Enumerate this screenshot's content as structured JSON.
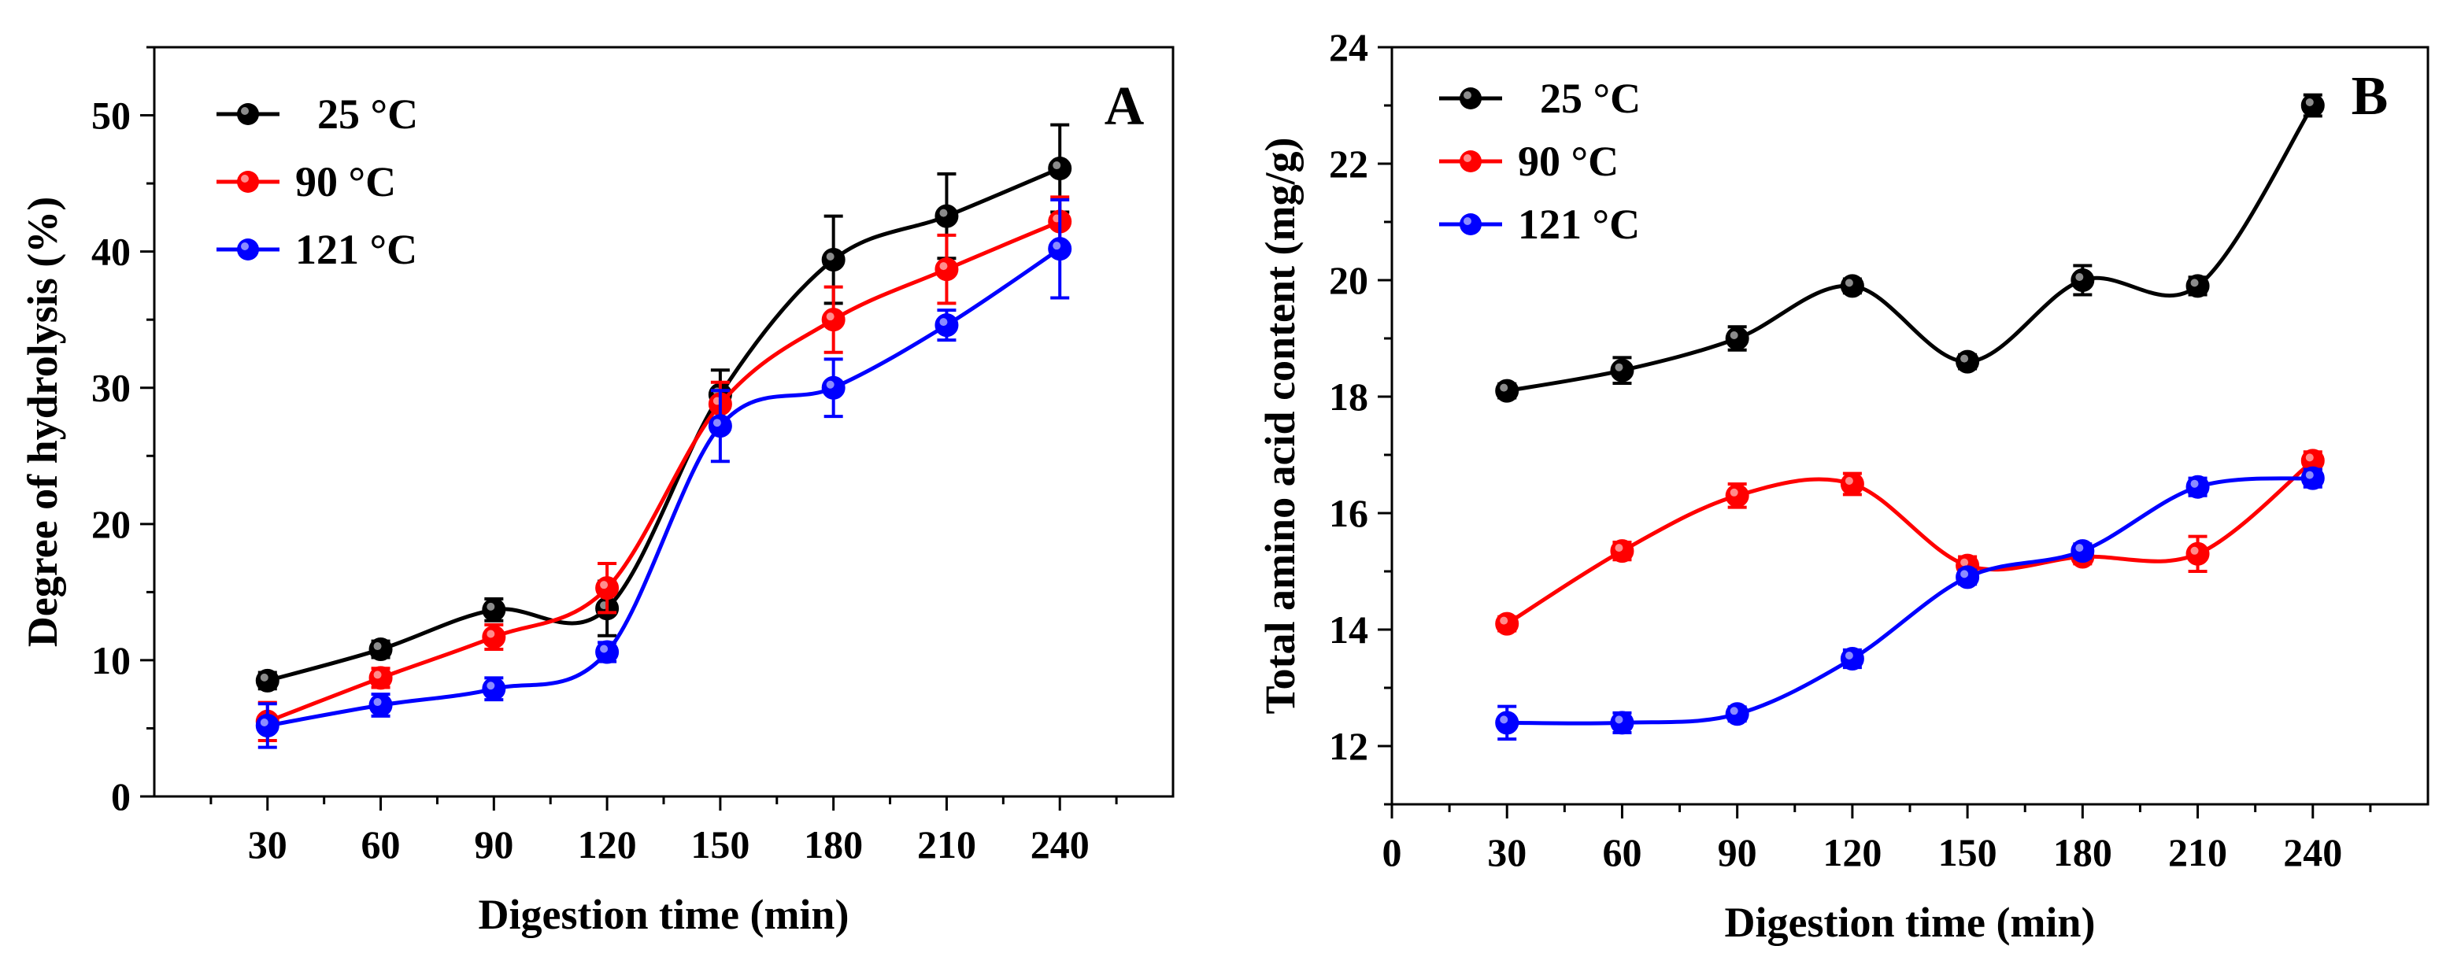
{
  "chart_data": [
    {
      "type": "line",
      "panel_label": "A",
      "xlabel": "Digestion time (min)",
      "ylabel": "Degree of hydrolysis (%)",
      "xlim": [
        0,
        270
      ],
      "ylim": [
        0,
        55
      ],
      "x_ticks": [
        "30",
        "60",
        "90",
        "120",
        "150",
        "180",
        "210",
        "240"
      ],
      "y_ticks": [
        "0",
        "10",
        "20",
        "30",
        "40",
        "50"
      ],
      "legend_position": "top-left",
      "x": [
        30,
        60,
        90,
        120,
        150,
        180,
        210,
        240
      ],
      "series": [
        {
          "name": "25 °C",
          "color": "#000000",
          "values": [
            8.5,
            10.8,
            13.7,
            13.8,
            29.5,
            39.4,
            42.6,
            46.1
          ],
          "errors": [
            0.6,
            0.6,
            0.8,
            2.0,
            1.8,
            3.2,
            3.1,
            3.2
          ]
        },
        {
          "name": "90 °C",
          "color": "#ff0000",
          "values": [
            5.5,
            8.7,
            11.7,
            15.3,
            28.8,
            35.0,
            38.7,
            42.2
          ],
          "errors": [
            1.4,
            0.7,
            0.9,
            1.8,
            1.6,
            2.4,
            2.5,
            1.8
          ]
        },
        {
          "name": "121 °C",
          "color": "#0000ff",
          "values": [
            5.2,
            6.7,
            7.9,
            10.6,
            27.2,
            30.0,
            34.6,
            40.2
          ],
          "errors": [
            1.6,
            0.8,
            0.8,
            0.7,
            2.6,
            2.1,
            1.1,
            3.6
          ]
        }
      ]
    },
    {
      "type": "line",
      "panel_label": "B",
      "xlabel": "Digestion time (min)",
      "ylabel": "Total amino acid content (mg/g)",
      "xlim": [
        0,
        270
      ],
      "ylim": [
        11,
        24
      ],
      "x_ticks": [
        "0",
        "30",
        "60",
        "90",
        "120",
        "150",
        "180",
        "210",
        "240"
      ],
      "y_ticks": [
        "12",
        "14",
        "16",
        "18",
        "20",
        "22",
        "24"
      ],
      "legend_position": "top-left",
      "x": [
        30,
        60,
        90,
        120,
        150,
        180,
        210,
        240
      ],
      "series": [
        {
          "name": "25 °C",
          "color": "#000000",
          "values": [
            18.1,
            18.45,
            19.0,
            19.9,
            18.6,
            20.0,
            19.9,
            23.0
          ],
          "errors": [
            0.12,
            0.22,
            0.2,
            0.12,
            0.12,
            0.25,
            0.15,
            0.18
          ]
        },
        {
          "name": "90 °C",
          "color": "#ff0000",
          "values": [
            14.1,
            15.35,
            16.3,
            16.5,
            15.1,
            15.25,
            15.3,
            16.9
          ],
          "errors": [
            0.12,
            0.15,
            0.2,
            0.18,
            0.15,
            0.12,
            0.3,
            0.15
          ]
        },
        {
          "name": "121 °C",
          "color": "#0000ff",
          "values": [
            12.4,
            12.4,
            12.55,
            13.5,
            14.9,
            15.35,
            16.45,
            16.6
          ],
          "errors": [
            0.28,
            0.17,
            0.12,
            0.15,
            0.12,
            0.12,
            0.15,
            0.15
          ]
        }
      ]
    }
  ]
}
